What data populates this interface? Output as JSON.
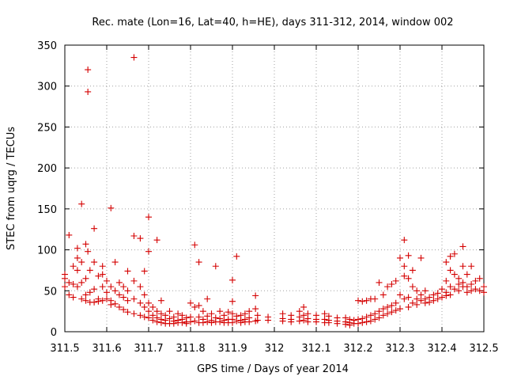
{
  "chart_data": {
    "type": "scatter",
    "title": "Rec. mate (Lon=16, Lat=40, h=HE), days 311-312, 2014, window 002",
    "xlabel": "GPS time / Days of year 2014",
    "ylabel": "STEC from uqrg / TECUs",
    "xlim": [
      311.5,
      312.5
    ],
    "ylim": [
      0,
      350
    ],
    "xticks": [
      311.5,
      311.6,
      311.7,
      311.8,
      311.9,
      312,
      312.1,
      312.2,
      312.3,
      312.4,
      312.5
    ],
    "xtick_labels": [
      "311.5",
      "311.6",
      "311.7",
      "311.8",
      "311.9",
      "312",
      "312.1",
      "312.2",
      "312.3",
      "312.4",
      "312.5"
    ],
    "yticks": [
      0,
      50,
      100,
      150,
      200,
      250,
      300,
      350
    ],
    "ytick_labels": [
      "0",
      "50",
      "100",
      "150",
      "200",
      "250",
      "300",
      "350"
    ],
    "grid": true,
    "marker": "+",
    "marker_color": "#d40000",
    "series": [
      {
        "name": "STEC",
        "points": [
          [
            311.5,
            70
          ],
          [
            311.5,
            65
          ],
          [
            311.5,
            55
          ],
          [
            311.51,
            60
          ],
          [
            311.51,
            45
          ],
          [
            311.51,
            118
          ],
          [
            311.52,
            80
          ],
          [
            311.52,
            58
          ],
          [
            311.52,
            42
          ],
          [
            311.53,
            102
          ],
          [
            311.53,
            90
          ],
          [
            311.53,
            75
          ],
          [
            311.53,
            55
          ],
          [
            311.54,
            85
          ],
          [
            311.54,
            60
          ],
          [
            311.54,
            40
          ],
          [
            311.54,
            156
          ],
          [
            311.55,
            107
          ],
          [
            311.55,
            65
          ],
          [
            311.55,
            45
          ],
          [
            311.55,
            38
          ],
          [
            311.555,
            320
          ],
          [
            311.555,
            293
          ],
          [
            311.555,
            98
          ],
          [
            311.56,
            75
          ],
          [
            311.56,
            48
          ],
          [
            311.56,
            36
          ],
          [
            311.57,
            126
          ],
          [
            311.57,
            85
          ],
          [
            311.57,
            52
          ],
          [
            311.57,
            36
          ],
          [
            311.58,
            68
          ],
          [
            311.58,
            40
          ],
          [
            311.58,
            37
          ],
          [
            311.59,
            80
          ],
          [
            311.59,
            70
          ],
          [
            311.59,
            55
          ],
          [
            311.59,
            38
          ],
          [
            311.6,
            62
          ],
          [
            311.6,
            48
          ],
          [
            311.6,
            40
          ],
          [
            311.61,
            151
          ],
          [
            311.61,
            55
          ],
          [
            311.61,
            38
          ],
          [
            311.61,
            33
          ],
          [
            311.62,
            85
          ],
          [
            311.62,
            50
          ],
          [
            311.62,
            34
          ],
          [
            311.63,
            60
          ],
          [
            311.63,
            45
          ],
          [
            311.63,
            30
          ],
          [
            311.64,
            55
          ],
          [
            311.64,
            42
          ],
          [
            311.64,
            27
          ],
          [
            311.65,
            74
          ],
          [
            311.65,
            50
          ],
          [
            311.65,
            38
          ],
          [
            311.65,
            24
          ],
          [
            311.665,
            335
          ],
          [
            311.665,
            117
          ],
          [
            311.665,
            62
          ],
          [
            311.665,
            40
          ],
          [
            311.665,
            22
          ],
          [
            311.68,
            114
          ],
          [
            311.68,
            55
          ],
          [
            311.68,
            35
          ],
          [
            311.68,
            20
          ],
          [
            311.69,
            74
          ],
          [
            311.69,
            45
          ],
          [
            311.69,
            30
          ],
          [
            311.69,
            18
          ],
          [
            311.7,
            140
          ],
          [
            311.7,
            98
          ],
          [
            311.7,
            35
          ],
          [
            311.7,
            25
          ],
          [
            311.7,
            17
          ],
          [
            311.71,
            30
          ],
          [
            311.71,
            20
          ],
          [
            311.71,
            14
          ],
          [
            311.72,
            112
          ],
          [
            311.72,
            25
          ],
          [
            311.72,
            17
          ],
          [
            311.72,
            12
          ],
          [
            311.73,
            38
          ],
          [
            311.73,
            22
          ],
          [
            311.73,
            15
          ],
          [
            311.73,
            11
          ],
          [
            311.74,
            20
          ],
          [
            311.74,
            14
          ],
          [
            311.74,
            10
          ],
          [
            311.75,
            25
          ],
          [
            311.75,
            16
          ],
          [
            311.75,
            10
          ],
          [
            311.76,
            18
          ],
          [
            311.76,
            13
          ],
          [
            311.76,
            10
          ],
          [
            311.77,
            22
          ],
          [
            311.77,
            14
          ],
          [
            311.77,
            11
          ],
          [
            311.78,
            20
          ],
          [
            311.78,
            15
          ],
          [
            311.78,
            11
          ],
          [
            311.79,
            17
          ],
          [
            311.79,
            12
          ],
          [
            311.79,
            10
          ],
          [
            311.8,
            35
          ],
          [
            311.8,
            18
          ],
          [
            311.8,
            12
          ],
          [
            311.81,
            106
          ],
          [
            311.81,
            30
          ],
          [
            311.81,
            13
          ],
          [
            311.82,
            85
          ],
          [
            311.82,
            32
          ],
          [
            311.82,
            18
          ],
          [
            311.82,
            11
          ],
          [
            311.83,
            25
          ],
          [
            311.83,
            15
          ],
          [
            311.83,
            11
          ],
          [
            311.84,
            40
          ],
          [
            311.84,
            19
          ],
          [
            311.84,
            12
          ],
          [
            311.85,
            22
          ],
          [
            311.85,
            14
          ],
          [
            311.85,
            11
          ],
          [
            311.86,
            80
          ],
          [
            311.86,
            17
          ],
          [
            311.86,
            12
          ],
          [
            311.87,
            25
          ],
          [
            311.87,
            16
          ],
          [
            311.87,
            12
          ],
          [
            311.88,
            20
          ],
          [
            311.88,
            14
          ],
          [
            311.88,
            11
          ],
          [
            311.89,
            24
          ],
          [
            311.89,
            15
          ],
          [
            311.89,
            11
          ],
          [
            311.9,
            63
          ],
          [
            311.9,
            37
          ],
          [
            311.9,
            22
          ],
          [
            311.9,
            15
          ],
          [
            311.9,
            11
          ],
          [
            311.91,
            92
          ],
          [
            311.91,
            19
          ],
          [
            311.91,
            13
          ],
          [
            311.92,
            20
          ],
          [
            311.92,
            14
          ],
          [
            311.92,
            11
          ],
          [
            311.93,
            22
          ],
          [
            311.93,
            15
          ],
          [
            311.93,
            12
          ],
          [
            311.94,
            25
          ],
          [
            311.94,
            17
          ],
          [
            311.94,
            12
          ],
          [
            311.955,
            44
          ],
          [
            311.955,
            28
          ],
          [
            311.955,
            13
          ],
          [
            311.96,
            20
          ],
          [
            311.96,
            14
          ],
          [
            311.985,
            18
          ],
          [
            311.985,
            14
          ],
          [
            312.02,
            22
          ],
          [
            312.02,
            16
          ],
          [
            312.02,
            13
          ],
          [
            312.04,
            20
          ],
          [
            312.04,
            15
          ],
          [
            312.04,
            12
          ],
          [
            312.06,
            25
          ],
          [
            312.06,
            18
          ],
          [
            312.06,
            13
          ],
          [
            312.07,
            30
          ],
          [
            312.07,
            20
          ],
          [
            312.07,
            14
          ],
          [
            312.08,
            22
          ],
          [
            312.08,
            16
          ],
          [
            312.08,
            12
          ],
          [
            312.1,
            20
          ],
          [
            312.1,
            15
          ],
          [
            312.1,
            12
          ],
          [
            312.12,
            22
          ],
          [
            312.12,
            15
          ],
          [
            312.12,
            11
          ],
          [
            312.13,
            19
          ],
          [
            312.13,
            14
          ],
          [
            312.13,
            11
          ],
          [
            312.15,
            17
          ],
          [
            312.15,
            13
          ],
          [
            312.15,
            10
          ],
          [
            312.17,
            17
          ],
          [
            312.17,
            12
          ],
          [
            312.17,
            9
          ],
          [
            312.18,
            15
          ],
          [
            312.18,
            11
          ],
          [
            312.18,
            8
          ],
          [
            312.19,
            14
          ],
          [
            312.19,
            10
          ],
          [
            312.2,
            38
          ],
          [
            312.2,
            15
          ],
          [
            312.2,
            10
          ],
          [
            312.21,
            37
          ],
          [
            312.21,
            16
          ],
          [
            312.21,
            11
          ],
          [
            312.22,
            38
          ],
          [
            312.22,
            18
          ],
          [
            312.22,
            12
          ],
          [
            312.23,
            40
          ],
          [
            312.23,
            20
          ],
          [
            312.23,
            13
          ],
          [
            312.24,
            40
          ],
          [
            312.24,
            22
          ],
          [
            312.24,
            15
          ],
          [
            312.25,
            60
          ],
          [
            312.25,
            25
          ],
          [
            312.25,
            17
          ],
          [
            312.26,
            45
          ],
          [
            312.26,
            28
          ],
          [
            312.26,
            20
          ],
          [
            312.27,
            55
          ],
          [
            312.27,
            30
          ],
          [
            312.27,
            22
          ],
          [
            312.28,
            58
          ],
          [
            312.28,
            32
          ],
          [
            312.28,
            24
          ],
          [
            312.29,
            62
          ],
          [
            312.29,
            35
          ],
          [
            312.29,
            26
          ],
          [
            312.3,
            90
          ],
          [
            312.3,
            45
          ],
          [
            312.3,
            28
          ],
          [
            312.31,
            112
          ],
          [
            312.31,
            80
          ],
          [
            312.31,
            68
          ],
          [
            312.31,
            40
          ],
          [
            312.32,
            93
          ],
          [
            312.32,
            65
          ],
          [
            312.32,
            42
          ],
          [
            312.32,
            30
          ],
          [
            312.33,
            75
          ],
          [
            312.33,
            55
          ],
          [
            312.33,
            35
          ],
          [
            312.34,
            50
          ],
          [
            312.34,
            40
          ],
          [
            312.34,
            33
          ],
          [
            312.35,
            90
          ],
          [
            312.35,
            45
          ],
          [
            312.35,
            38
          ],
          [
            312.36,
            50
          ],
          [
            312.36,
            40
          ],
          [
            312.36,
            35
          ],
          [
            312.37,
            42
          ],
          [
            312.37,
            36
          ],
          [
            312.38,
            45
          ],
          [
            312.38,
            38
          ],
          [
            312.39,
            47
          ],
          [
            312.39,
            40
          ],
          [
            312.4,
            52
          ],
          [
            312.4,
            42
          ],
          [
            312.41,
            85
          ],
          [
            312.41,
            62
          ],
          [
            312.41,
            48
          ],
          [
            312.41,
            44
          ],
          [
            312.42,
            92
          ],
          [
            312.42,
            75
          ],
          [
            312.42,
            55
          ],
          [
            312.42,
            45
          ],
          [
            312.43,
            95
          ],
          [
            312.43,
            70
          ],
          [
            312.43,
            52
          ],
          [
            312.44,
            65
          ],
          [
            312.44,
            58
          ],
          [
            312.44,
            50
          ],
          [
            312.45,
            104
          ],
          [
            312.45,
            80
          ],
          [
            312.45,
            60
          ],
          [
            312.45,
            55
          ],
          [
            312.46,
            70
          ],
          [
            312.46,
            55
          ],
          [
            312.46,
            48
          ],
          [
            312.47,
            80
          ],
          [
            312.47,
            58
          ],
          [
            312.47,
            50
          ],
          [
            312.48,
            62
          ],
          [
            312.48,
            52
          ],
          [
            312.49,
            65
          ],
          [
            312.49,
            50
          ],
          [
            312.5,
            55
          ],
          [
            312.5,
            48
          ]
        ]
      }
    ]
  }
}
